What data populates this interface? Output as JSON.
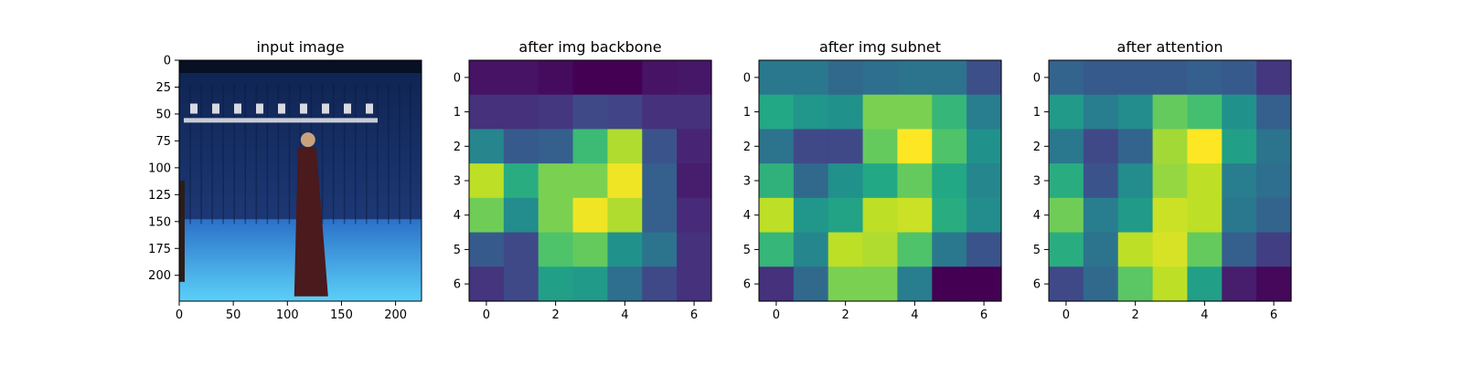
{
  "palette": {
    "viridis": [
      "#440154",
      "#482475",
      "#414487",
      "#355f8d",
      "#2a788e",
      "#21918c",
      "#22a884",
      "#44bf70",
      "#7ad151",
      "#bddf26",
      "#fde725"
    ]
  },
  "chart_data": [
    {
      "type": "image",
      "title": "input image",
      "xlim": [
        0,
        224
      ],
      "ylim": [
        224,
        0
      ],
      "xticks": [
        0,
        50,
        100,
        150,
        200
      ],
      "yticks": [
        0,
        25,
        50,
        75,
        100,
        125,
        150,
        175,
        200
      ],
      "xtick_labels": [
        "0",
        "50",
        "100",
        "150",
        "200"
      ],
      "ytick_labels": [
        "0",
        "25",
        "50",
        "75",
        "100",
        "125",
        "150",
        "175",
        "200"
      ],
      "description_colors": {
        "wall": "#1e3a78",
        "floor": "#3aa8e8",
        "figure": "#4a1a1c"
      }
    },
    {
      "type": "heatmap",
      "title": "after img backbone",
      "colormap": "viridis",
      "xticks": [
        0,
        2,
        4,
        6
      ],
      "yticks": [
        0,
        1,
        2,
        3,
        4,
        5,
        6
      ],
      "xtick_labels": [
        "0",
        "2",
        "4",
        "6"
      ],
      "ytick_labels": [
        "0",
        "1",
        "2",
        "3",
        "4",
        "5",
        "6"
      ],
      "values": [
        [
          0.05,
          0.05,
          0.03,
          0.0,
          0.0,
          0.05,
          0.06
        ],
        [
          0.14,
          0.14,
          0.16,
          0.22,
          0.2,
          0.14,
          0.14
        ],
        [
          0.45,
          0.28,
          0.3,
          0.68,
          0.88,
          0.26,
          0.1
        ],
        [
          0.9,
          0.62,
          0.8,
          0.8,
          0.98,
          0.3,
          0.08
        ],
        [
          0.78,
          0.48,
          0.8,
          0.98,
          0.88,
          0.3,
          0.12
        ],
        [
          0.28,
          0.22,
          0.72,
          0.76,
          0.5,
          0.38,
          0.14
        ],
        [
          0.15,
          0.22,
          0.56,
          0.54,
          0.36,
          0.22,
          0.14
        ]
      ]
    },
    {
      "type": "heatmap",
      "title": "after img subnet",
      "colormap": "viridis",
      "xticks": [
        0,
        2,
        4,
        6
      ],
      "yticks": [
        0,
        1,
        2,
        3,
        4,
        5,
        6
      ],
      "xtick_labels": [
        "0",
        "2",
        "4",
        "6"
      ],
      "ytick_labels": [
        "0",
        "1",
        "2",
        "3",
        "4",
        "5",
        "6"
      ],
      "values": [
        [
          0.4,
          0.4,
          0.34,
          0.36,
          0.38,
          0.38,
          0.24
        ],
        [
          0.6,
          0.52,
          0.5,
          0.8,
          0.8,
          0.66,
          0.42
        ],
        [
          0.38,
          0.22,
          0.22,
          0.76,
          1.0,
          0.72,
          0.5
        ],
        [
          0.64,
          0.34,
          0.5,
          0.6,
          0.76,
          0.6,
          0.46
        ],
        [
          0.9,
          0.52,
          0.58,
          0.9,
          0.92,
          0.62,
          0.48
        ],
        [
          0.66,
          0.46,
          0.9,
          0.88,
          0.72,
          0.4,
          0.26
        ],
        [
          0.14,
          0.34,
          0.8,
          0.8,
          0.42,
          0.0,
          0.0
        ]
      ]
    },
    {
      "type": "heatmap",
      "title": "after attention",
      "colormap": "viridis",
      "xticks": [
        0,
        2,
        4,
        6
      ],
      "yticks": [
        0,
        1,
        2,
        3,
        4,
        5,
        6
      ],
      "xtick_labels": [
        "0",
        "2",
        "4",
        "6"
      ],
      "ytick_labels": [
        "0",
        "1",
        "2",
        "3",
        "4",
        "5",
        "6"
      ],
      "values": [
        [
          0.32,
          0.28,
          0.28,
          0.28,
          0.3,
          0.28,
          0.16
        ],
        [
          0.54,
          0.42,
          0.48,
          0.76,
          0.7,
          0.5,
          0.3
        ],
        [
          0.4,
          0.22,
          0.32,
          0.86,
          1.0,
          0.56,
          0.38
        ],
        [
          0.62,
          0.26,
          0.48,
          0.84,
          0.9,
          0.42,
          0.36
        ],
        [
          0.78,
          0.42,
          0.54,
          0.92,
          0.9,
          0.4,
          0.32
        ],
        [
          0.62,
          0.38,
          0.9,
          0.94,
          0.76,
          0.3,
          0.18
        ],
        [
          0.22,
          0.34,
          0.74,
          0.9,
          0.56,
          0.08,
          0.02
        ]
      ]
    }
  ]
}
